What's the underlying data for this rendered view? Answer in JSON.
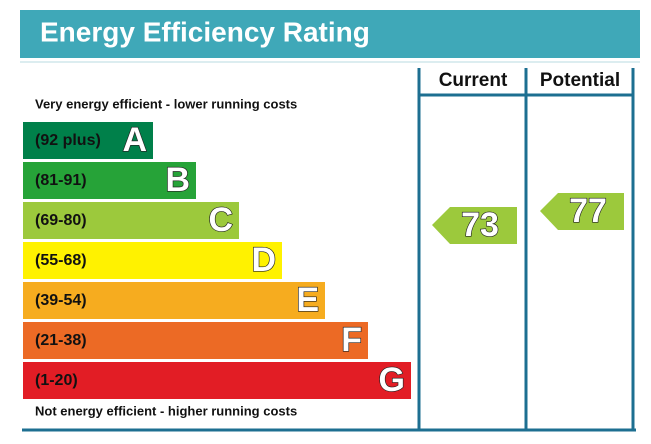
{
  "title": "Energy Efficiency Rating",
  "top_label": "Very energy efficient - lower running costs",
  "bottom_label": "Not energy efficient - higher running costs",
  "columns": [
    "Current",
    "Potential"
  ],
  "bands": [
    {
      "range": "(92 plus)",
      "letter": "A",
      "color": "#00804a"
    },
    {
      "range": "(81-91)",
      "letter": "B",
      "color": "#26a338"
    },
    {
      "range": "(69-80)",
      "letter": "C",
      "color": "#9cc93c"
    },
    {
      "range": "(55-68)",
      "letter": "D",
      "color": "#fff200"
    },
    {
      "range": "(39-54)",
      "letter": "E",
      "color": "#f6ac1f"
    },
    {
      "range": "(21-38)",
      "letter": "F",
      "color": "#ec6a25"
    },
    {
      "range": "(1-20)",
      "letter": "G",
      "color": "#e21d25"
    }
  ],
  "current": {
    "value": 73,
    "color": "#9cc93c"
  },
  "potential": {
    "value": 77,
    "color": "#9cc93c"
  }
}
